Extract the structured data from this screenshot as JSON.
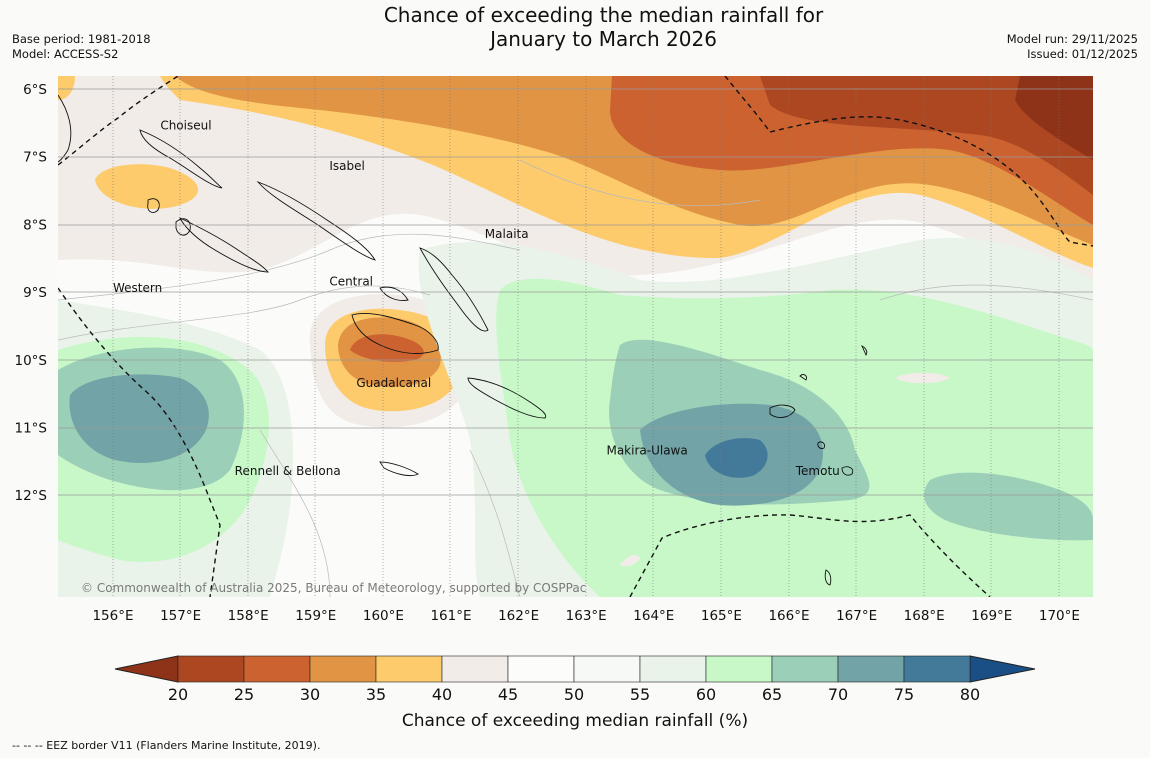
{
  "title_line1": "Chance of exceeding the median rainfall for",
  "title_line2": "January to March 2026",
  "base_period": "Base period: 1981-2018",
  "model": "Model: ACCESS-S2",
  "model_run": "Model run: 29/11/2025",
  "issued": "Issued: 01/12/2025",
  "copyright": "© Commonwealth of Australia 2025, Bureau of Meteorology, supported by COSPPac",
  "footnote": "--  --  -- EEZ border V11 (Flanders Marine Institute, 2019).",
  "lat_ticks": [
    "6°S",
    "7°S",
    "8°S",
    "9°S",
    "10°S",
    "11°S",
    "12°S"
  ],
  "lon_ticks": [
    "156°E",
    "157°E",
    "158°E",
    "159°E",
    "160°E",
    "161°E",
    "162°E",
    "163°E",
    "164°E",
    "165°E",
    "166°E",
    "167°E",
    "168°E",
    "169°E",
    "170°E"
  ],
  "places": [
    {
      "id": "choiseul",
      "name": "Choiseul",
      "lon": 156.7,
      "lat": -6.6
    },
    {
      "id": "isabel",
      "name": "Isabel",
      "lon": 159.2,
      "lat": -7.2
    },
    {
      "id": "malaita",
      "name": "Malaita",
      "lon": 161.5,
      "lat": -8.2
    },
    {
      "id": "western",
      "name": "Western",
      "lon": 156.0,
      "lat": -9.0
    },
    {
      "id": "central",
      "name": "Central",
      "lon": 159.2,
      "lat": -8.9
    },
    {
      "id": "guadalcanal",
      "name": "Guadalcanal",
      "lon": 159.6,
      "lat": -10.4
    },
    {
      "id": "makira-ulawa",
      "name": "Makira-Ulawa",
      "lon": 163.3,
      "lat": -11.4
    },
    {
      "id": "temotu",
      "name": "Temotu",
      "lon": 166.1,
      "lat": -11.7
    },
    {
      "id": "rennell-bellona",
      "name": "Rennell & Bellona",
      "lon": 157.8,
      "lat": -11.7
    }
  ],
  "colorbar": {
    "title": "Chance of exceeding median rainfall (%)",
    "labels": [
      "20",
      "25",
      "30",
      "35",
      "40",
      "45",
      "50",
      "55",
      "60",
      "65",
      "70",
      "75",
      "80"
    ],
    "low_extend_color": "#8f3318",
    "high_extend_color": "#1a4f85",
    "bins": [
      "#ac4722",
      "#cc6230",
      "#e09444",
      "#fdcb6b",
      "#f2ece8",
      "#fcfcfa",
      "#f7f9f6",
      "#e9f3e9",
      "#c8f8c8",
      "#9ccfb8",
      "#72a3a6",
      "#437a99"
    ]
  },
  "map_colors": {
    "ocean_base": "#fbfcfa",
    "c_40_45": "#f2ece8",
    "c_35_40": "#fdcb6b",
    "c_30_35": "#e09444",
    "c_25_30": "#cc6230",
    "c_20_25": "#ac4722",
    "c_lt20": "#8f3318",
    "c_55_60": "#e9f3e9",
    "c_60_65": "#c8f8c8",
    "c_65_70": "#9ccfb8",
    "c_70_75": "#72a3a6",
    "c_75_80": "#437a99"
  }
}
